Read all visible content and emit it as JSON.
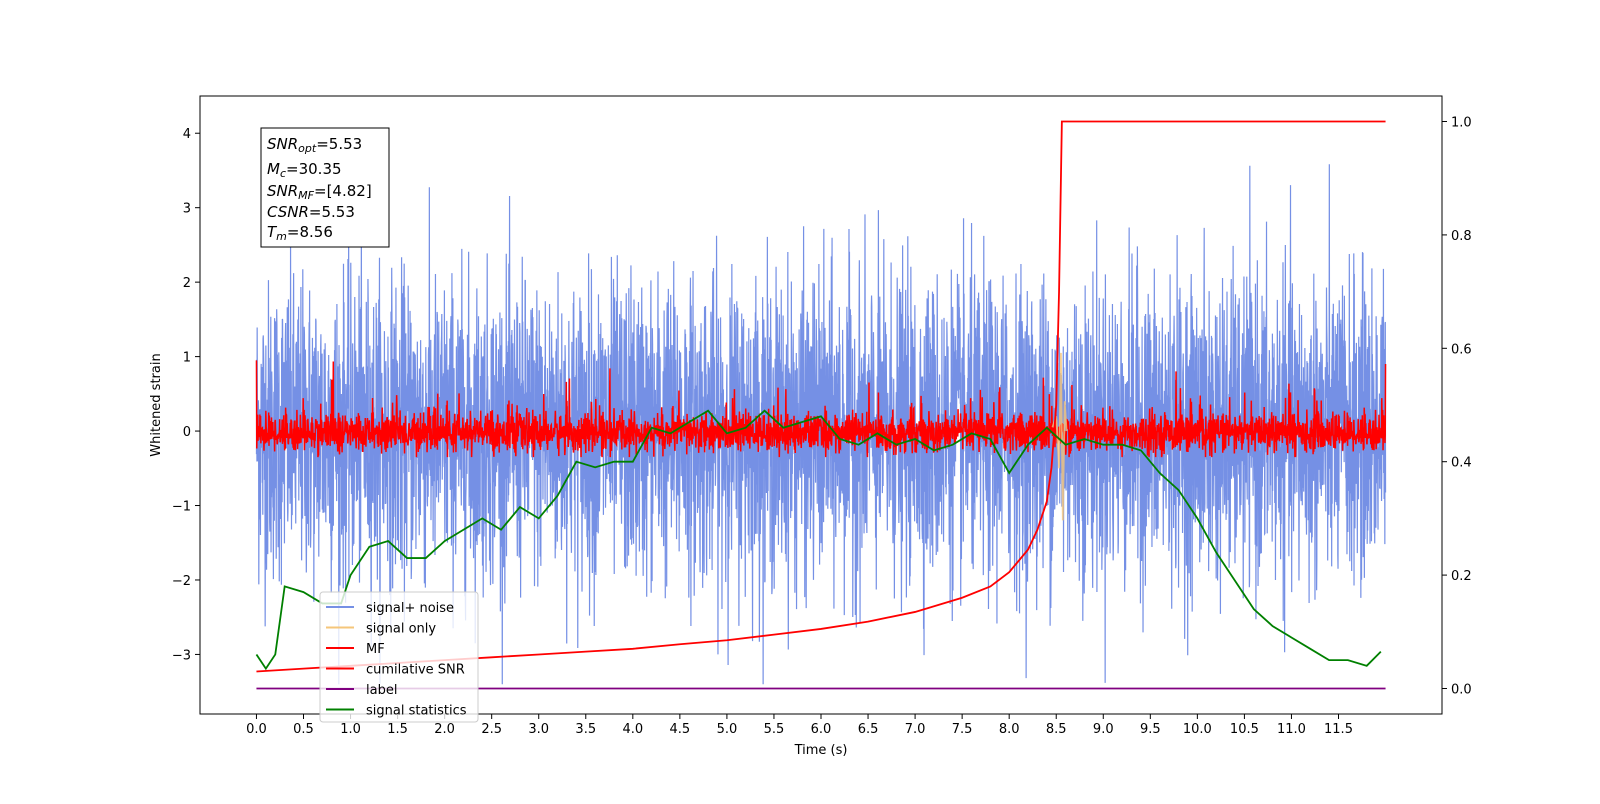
{
  "chart_data": {
    "type": "line",
    "xlabel": "Time (s)",
    "ylabel": "Whitened strain",
    "xlim": [
      -0.6,
      12.6
    ],
    "ylim": [
      -3.8,
      4.5
    ],
    "y2lim": [
      -0.045,
      1.045
    ],
    "xticks": [
      "0.0",
      "0.5",
      "1.0",
      "1.5",
      "2.0",
      "2.5",
      "3.0",
      "3.5",
      "4.0",
      "4.5",
      "5.0",
      "5.5",
      "6.0",
      "6.5",
      "7.0",
      "7.5",
      "8.0",
      "8.5",
      "9.0",
      "9.5",
      "10.0",
      "10.5",
      "11.0",
      "11.5"
    ],
    "yticks": [
      "−3",
      "−2",
      "−1",
      "0",
      "1",
      "2",
      "3",
      "4"
    ],
    "y2ticks": [
      "0.0",
      "0.2",
      "0.4",
      "0.6",
      "0.8",
      "1.0"
    ],
    "grid": false,
    "legend_placement": "lower-left",
    "legend": [
      "signal+ noise",
      "signal only",
      "MF",
      "cumilative SNR",
      "label",
      "signal statistics"
    ],
    "series_colors": {
      "signal_noise": "#7590e5",
      "signal_only": "#f5c67a",
      "mf": "#ff0000",
      "cumulative_snr": "#ff0000",
      "label": "#800080",
      "signal_statistics": "#008000"
    },
    "series": [
      {
        "name": "signal+ noise",
        "axis": "left",
        "description_mean": 0.0,
        "description_std": 1.0,
        "x_start": 0.0,
        "x_end": 12.0
      },
      {
        "name": "signal only",
        "axis": "left",
        "x": [
          8.46,
          8.5,
          8.53,
          8.55,
          8.57,
          8.59,
          8.61
        ],
        "y": [
          0.05,
          0.2,
          -0.5,
          1.05,
          -1.2,
          0.4,
          0.0
        ]
      },
      {
        "name": "MF",
        "axis": "left",
        "x_start": 0.0,
        "x_end": 12.0,
        "y_start": 1.0,
        "y_end": 0.9
      },
      {
        "name": "cumilative SNR",
        "axis": "right",
        "x": [
          0.0,
          0.5,
          1.0,
          1.5,
          2.0,
          2.5,
          3.0,
          3.5,
          4.0,
          4.5,
          5.0,
          5.5,
          6.0,
          6.5,
          7.0,
          7.5,
          7.8,
          8.0,
          8.2,
          8.3,
          8.4,
          8.45,
          8.5,
          8.53,
          8.56,
          12.0
        ],
        "y": [
          0.03,
          0.035,
          0.04,
          0.045,
          0.05,
          0.055,
          0.06,
          0.065,
          0.07,
          0.078,
          0.085,
          0.095,
          0.105,
          0.118,
          0.135,
          0.16,
          0.18,
          0.205,
          0.245,
          0.28,
          0.33,
          0.39,
          0.5,
          0.7,
          1.0,
          1.0
        ]
      },
      {
        "name": "label",
        "axis": "right",
        "x": [
          0.0,
          12.0
        ],
        "y": [
          0.0,
          0.0
        ]
      },
      {
        "name": "signal statistics",
        "axis": "right",
        "x": [
          0.0,
          0.1,
          0.2,
          0.3,
          0.5,
          0.7,
          0.9,
          1.0,
          1.2,
          1.4,
          1.6,
          1.8,
          2.0,
          2.2,
          2.4,
          2.6,
          2.8,
          3.0,
          3.2,
          3.4,
          3.6,
          3.8,
          4.0,
          4.2,
          4.4,
          4.6,
          4.8,
          5.0,
          5.2,
          5.4,
          5.6,
          5.8,
          6.0,
          6.2,
          6.4,
          6.6,
          6.8,
          7.0,
          7.2,
          7.4,
          7.6,
          7.8,
          8.0,
          8.2,
          8.4,
          8.6,
          8.8,
          9.0,
          9.2,
          9.4,
          9.6,
          9.8,
          10.0,
          10.2,
          10.4,
          10.6,
          10.8,
          11.0,
          11.2,
          11.4,
          11.6,
          11.8,
          11.95
        ],
        "y": [
          0.06,
          0.035,
          0.06,
          0.18,
          0.17,
          0.15,
          0.15,
          0.2,
          0.25,
          0.26,
          0.23,
          0.23,
          0.26,
          0.28,
          0.3,
          0.28,
          0.32,
          0.3,
          0.34,
          0.4,
          0.39,
          0.4,
          0.4,
          0.46,
          0.45,
          0.47,
          0.49,
          0.45,
          0.46,
          0.49,
          0.46,
          0.47,
          0.48,
          0.44,
          0.43,
          0.45,
          0.43,
          0.44,
          0.42,
          0.43,
          0.45,
          0.44,
          0.38,
          0.43,
          0.46,
          0.43,
          0.44,
          0.43,
          0.43,
          0.42,
          0.38,
          0.35,
          0.3,
          0.24,
          0.19,
          0.14,
          0.11,
          0.09,
          0.07,
          0.05,
          0.05,
          0.04,
          0.065
        ]
      }
    ]
  },
  "info_box": {
    "line1_var": "SNR",
    "line1_sub": "opt",
    "line1_val": "=5.53",
    "line2_var": "M",
    "line2_sub": "c",
    "line2_val": "=30.35",
    "line3_var": "SNR",
    "line3_sub": "MF",
    "line3_val": "=[4.82]",
    "line4_var": "CSNR",
    "line4_val": "=5.53",
    "line5_var": "T",
    "line5_sub": "m",
    "line5_val": "=8.56"
  }
}
